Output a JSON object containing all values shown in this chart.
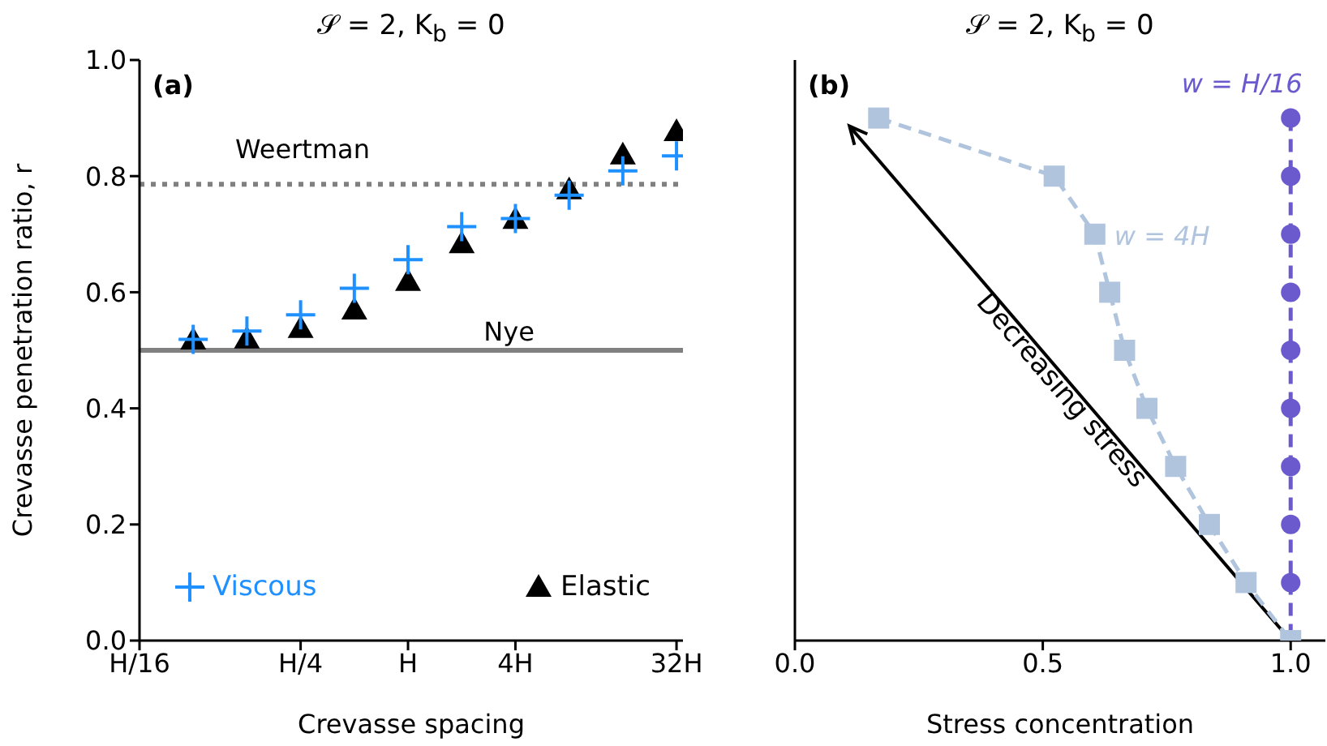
{
  "chart_data": [
    {
      "type": "scatter",
      "title": "𝒮 = 2, K$_{b}$ = 0",
      "xlabel": "Crevasse spacing",
      "ylabel": "Crevasse penetration ratio, r",
      "categories": [
        "H/16",
        null,
        null,
        "H/4",
        null,
        "H",
        null,
        "4H",
        null,
        null,
        "32H"
      ],
      "ylim": [
        0,
        1
      ],
      "yticks": [
        {
          "value": 0,
          "label": "0.0"
        },
        0.2,
        0.4,
        0.6,
        0.8,
        {
          "value": 1,
          "label": "1.0"
        }
      ],
      "series": [
        {
          "name": "Viscous",
          "color": "#1e90ff",
          "marker": "cross",
          "values": [
            null,
            0.519,
            0.533,
            0.561,
            0.607,
            0.656,
            0.713,
            0.727,
            0.767,
            0.809,
            0.835
          ]
        },
        {
          "name": "Elastic",
          "color": "#000000",
          "marker": "triangle",
          "values": [
            null,
            0.518,
            0.52,
            0.538,
            0.57,
            0.619,
            0.684,
            0.726,
            0.777,
            0.837,
            0.877
          ]
        }
      ],
      "ref_lines": [
        {
          "axis": "y",
          "value": 0.786,
          "label": "Weertman",
          "color": "#808080",
          "line_style": "dotted"
        },
        {
          "axis": "y",
          "value": 0.5,
          "label": "Nye",
          "color": "#808080",
          "line_style": "solid"
        }
      ],
      "annotations": [
        "(a)"
      ],
      "legend": "bottom"
    },
    {
      "type": "line",
      "title": "𝒮 = 2, K$_{b}$ = 0",
      "xlabel": "Stress concentration",
      "xlim": [
        0,
        1.07
      ],
      "xticks": [
        {
          "value": 0,
          "label": "0.0"
        },
        0.5,
        {
          "value": 1,
          "label": "1.0"
        }
      ],
      "ylim": [
        0,
        1
      ],
      "yticks": [
        0,
        0.2,
        0.4,
        0.6,
        0.8,
        1
      ],
      "tick_labels": "x",
      "line_style": "dashed",
      "series": [
        {
          "name": "w = 4H",
          "color": "#b0c4de",
          "marker": "square",
          "x": [
            0.169,
            0.523,
            0.605,
            0.635,
            0.665,
            0.71,
            0.768,
            0.836,
            0.91,
            1.0
          ],
          "values": [
            0.9,
            0.8,
            0.7,
            0.6,
            0.5,
            0.4,
            0.3,
            0.2,
            0.1,
            0.0
          ]
        },
        {
          "name": "w = H/16",
          "color": "#6a5acd",
          "marker": "circle",
          "x": [
            1.0,
            1.0,
            1.0,
            1.0,
            1.0,
            1.0,
            1.0,
            1.0,
            1.0,
            1.0
          ],
          "values": [
            0.9,
            0.8,
            0.7,
            0.6,
            0.5,
            0.4,
            0.3,
            0.2,
            0.1,
            0.0
          ]
        }
      ],
      "annotations": [
        "(b)",
        "Decreasing stress"
      ]
    }
  ]
}
